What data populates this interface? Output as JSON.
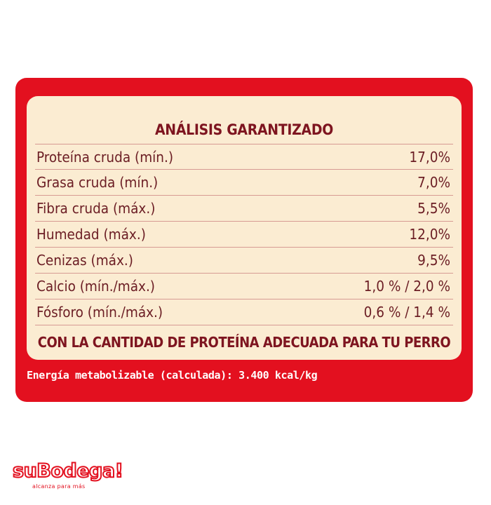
{
  "title": "ANÁLISIS GARANTIZADO",
  "rows": [
    {
      "label": "Proteína cruda (mín.)",
      "value": "17,0%"
    },
    {
      "label": "Grasa cruda (mín.)",
      "value": "7,0%"
    },
    {
      "label": "Fibra cruda (máx.)",
      "value": "5,5%"
    },
    {
      "label": "Humedad (máx.)",
      "value": "12,0%"
    },
    {
      "label": "Cenizas (máx.)",
      "value": "9,5%"
    },
    {
      "label": "Calcio (mín./máx.)",
      "value": "1,0 % / 2,0 %"
    },
    {
      "label": "Fósforo (mín./máx.)",
      "value": "0,6 % / 1,4 %"
    }
  ],
  "claim": "CON LA CANTIDAD DE PROTEÍNA ADECUADA PARA TU PERRO",
  "energy": "Energía metabolizable (calculada): 3.400 kcal/kg",
  "logo": {
    "name": "suBodega!",
    "tagline": "alcanza para más"
  },
  "colors": {
    "panel_red": "#e3101f",
    "cream": "#fbecd2",
    "text_maroon": "#7e1520"
  }
}
